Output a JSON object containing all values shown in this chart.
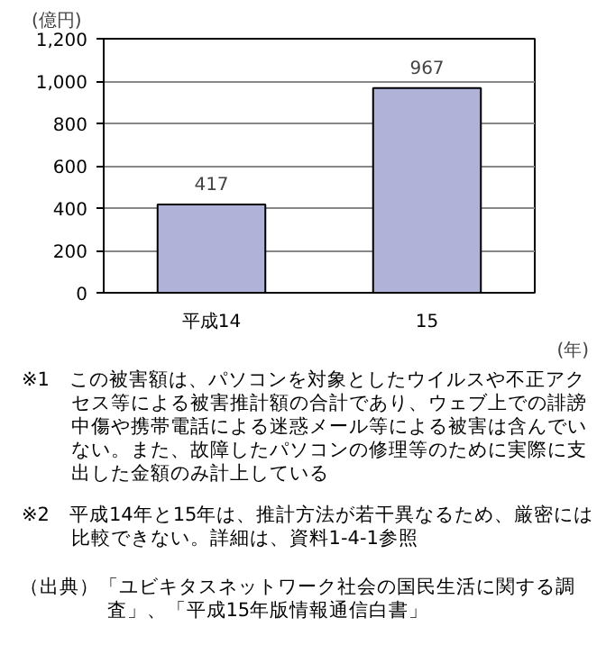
{
  "chart_data": {
    "type": "bar",
    "categories": [
      "平成14",
      "15"
    ],
    "values": [
      417,
      967
    ],
    "color": "#b0b2d8",
    "ylabel": "(億円)",
    "xlabel": "(年)",
    "ylim": [
      0,
      1200
    ],
    "yticks": [
      0,
      200,
      400,
      600,
      800,
      {
        "value": 1000,
        "label": "1,000"
      },
      {
        "value": 1200,
        "label": "1,200"
      }
    ],
    "grid": "y",
    "data_labels": true,
    "annotations": [
      "※1　この被害額は、パソコンを対象としたウイルスや不正アクセス等による被害推計額の合計であり、ウェブ上での誹謗中傷や携帯電話による迷惑メール等による被害は含んでいない。また、故障したパソコンの修理等のために実際に支出した金額のみ計上している",
      "※2　平成14年と15年は、推計方法が若干異なるため、厳密には比較できない。詳細は、資料1-4-1参照",
      "（出典）「ユビキタスネットワーク社会の国民生活に関する調査」、「平成15年版情報通信白書」"
    ]
  }
}
